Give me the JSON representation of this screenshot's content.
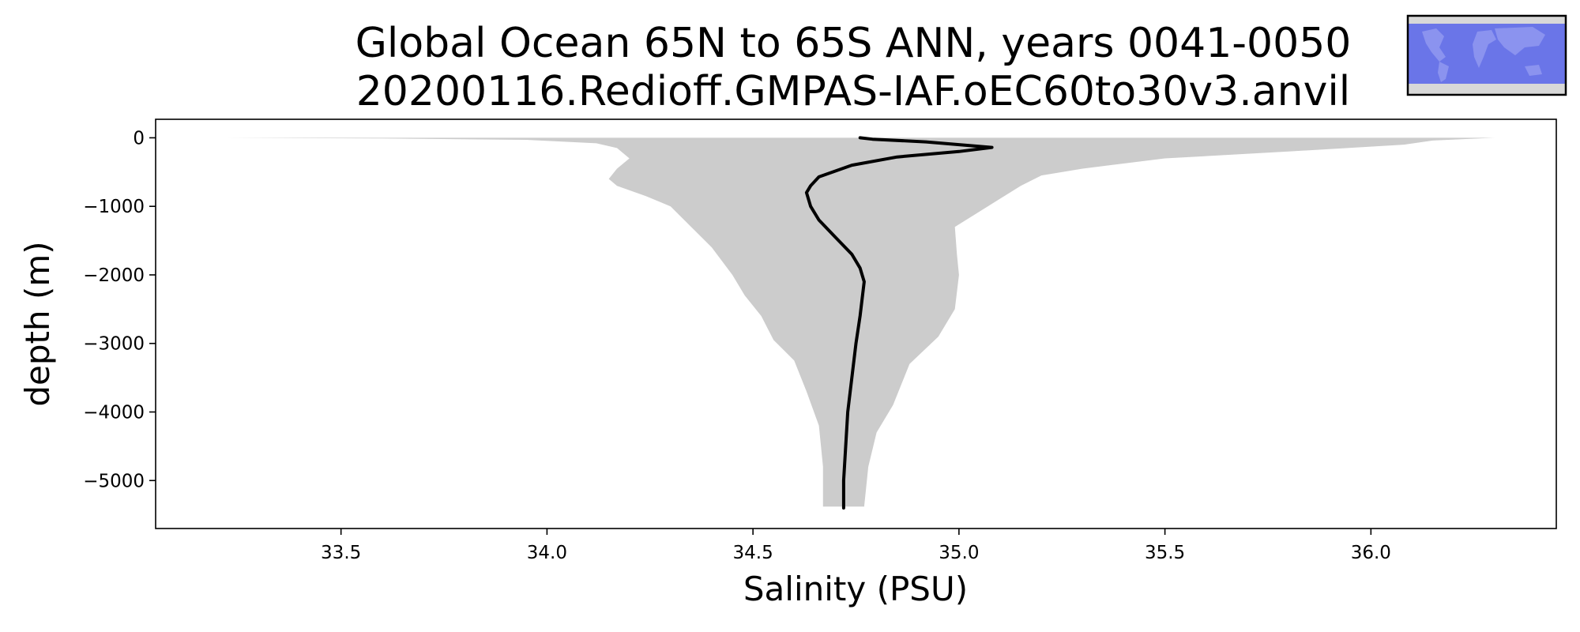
{
  "chart_data": {
    "type": "line",
    "title_lines": [
      "Global Ocean 65N to 65S ANN, years 0041-0050",
      "20200116.Redioff.GMPAS-IAF.oEC60to30v3.anvil"
    ],
    "xlabel": "Salinity (PSU)",
    "ylabel": "depth (m)",
    "xlim": [
      33.05,
      36.45
    ],
    "ylim": [
      -5700,
      270
    ],
    "xticks": [
      33.5,
      34.0,
      34.5,
      35.0,
      35.5,
      36.0
    ],
    "xtick_labels": [
      "33.5",
      "34.0",
      "34.5",
      "35.0",
      "35.5",
      "36.0"
    ],
    "yticks": [
      0,
      -1000,
      -2000,
      -3000,
      -4000,
      -5000
    ],
    "ytick_labels": [
      "0",
      "−1000",
      "−2000",
      "−3000",
      "−4000",
      "−5000"
    ],
    "grid": false,
    "colors": {
      "mean_line": "#000000",
      "spread_fill": "#cccccc",
      "inset_ocean": "#6a75e8",
      "inset_land": "#d8d8d8"
    },
    "series": [
      {
        "values": [
          [
            34.76,
            0
          ],
          [
            34.79,
            -20
          ],
          [
            34.92,
            -60
          ],
          [
            35.08,
            -140
          ],
          [
            35.0,
            -200
          ],
          [
            34.85,
            -280
          ],
          [
            34.74,
            -400
          ],
          [
            34.66,
            -570
          ],
          [
            34.64,
            -700
          ],
          [
            34.63,
            -800
          ],
          [
            34.635,
            -900
          ],
          [
            34.64,
            -1000
          ],
          [
            34.66,
            -1200
          ],
          [
            34.7,
            -1450
          ],
          [
            34.74,
            -1700
          ],
          [
            34.76,
            -1900
          ],
          [
            34.77,
            -2100
          ],
          [
            34.76,
            -2600
          ],
          [
            34.75,
            -3000
          ],
          [
            34.74,
            -3500
          ],
          [
            34.73,
            -4000
          ],
          [
            34.725,
            -4500
          ],
          [
            34.72,
            -5000
          ],
          [
            34.72,
            -5400
          ]
        ]
      }
    ],
    "spread": {
      "lower": [
        [
          33.22,
          0
        ],
        [
          33.6,
          -10
        ],
        [
          33.95,
          -30
        ],
        [
          34.12,
          -80
        ],
        [
          34.17,
          -150
        ],
        [
          34.2,
          -300
        ],
        [
          34.17,
          -450
        ],
        [
          34.15,
          -600
        ],
        [
          34.17,
          -700
        ],
        [
          34.24,
          -850
        ],
        [
          34.3,
          -1000
        ],
        [
          34.35,
          -1300
        ],
        [
          34.4,
          -1600
        ],
        [
          34.45,
          -2000
        ],
        [
          34.48,
          -2300
        ],
        [
          34.52,
          -2600
        ],
        [
          34.55,
          -2950
        ],
        [
          34.6,
          -3250
        ],
        [
          34.63,
          -3700
        ],
        [
          34.66,
          -4200
        ],
        [
          34.67,
          -4800
        ],
        [
          34.67,
          -5380
        ]
      ],
      "upper": [
        [
          36.3,
          0
        ],
        [
          36.15,
          -40
        ],
        [
          36.08,
          -100
        ],
        [
          35.8,
          -200
        ],
        [
          35.5,
          -300
        ],
        [
          35.3,
          -450
        ],
        [
          35.2,
          -550
        ],
        [
          35.15,
          -700
        ],
        [
          35.07,
          -1000
        ],
        [
          34.99,
          -1300
        ],
        [
          34.995,
          -1700
        ],
        [
          35.0,
          -2000
        ],
        [
          34.99,
          -2500
        ],
        [
          34.95,
          -2900
        ],
        [
          34.88,
          -3300
        ],
        [
          34.84,
          -3900
        ],
        [
          34.8,
          -4300
        ],
        [
          34.78,
          -4800
        ],
        [
          34.77,
          -5380
        ]
      ]
    },
    "inset_map": {
      "description_icon": "world-map-icon"
    }
  }
}
